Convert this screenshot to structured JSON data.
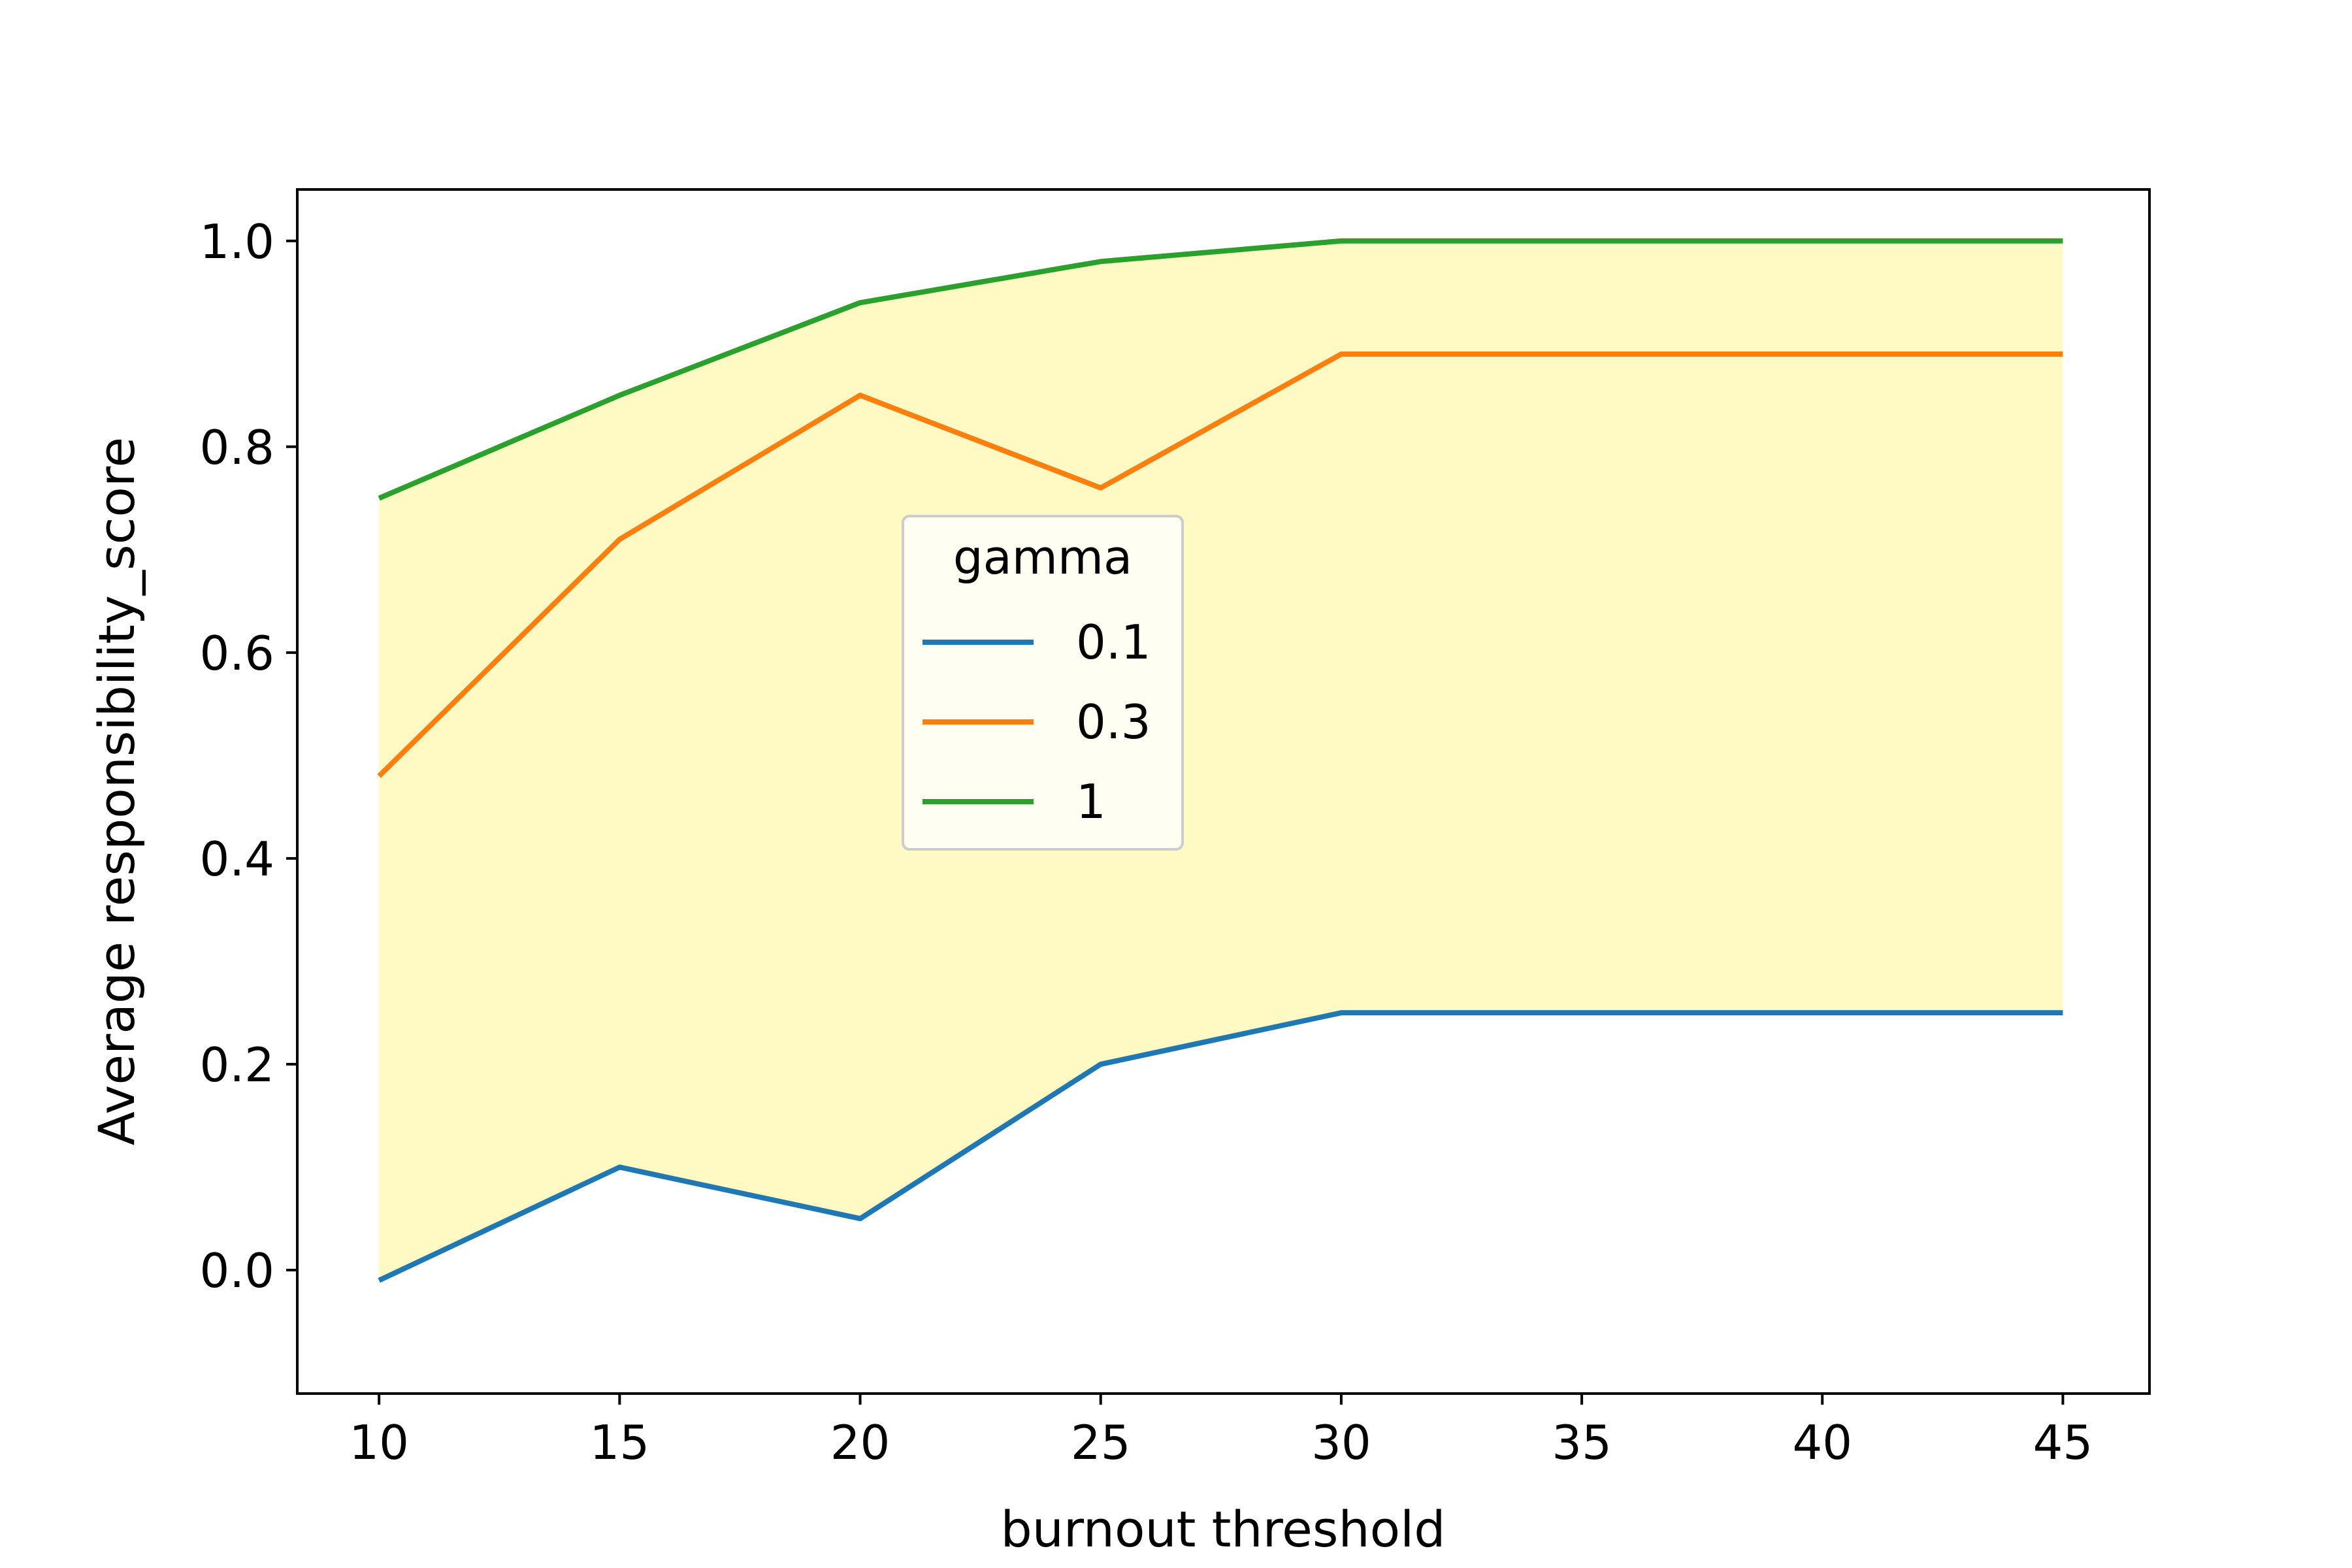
{
  "chart_data": {
    "type": "line",
    "title": "",
    "xlabel": "burnout threshold",
    "ylabel": "Average responsibility_score",
    "x": [
      10,
      15,
      20,
      25,
      30,
      35,
      40,
      45
    ],
    "xticks": [
      10,
      15,
      20,
      25,
      30,
      35,
      40,
      45
    ],
    "yticks": [
      0.0,
      0.2,
      0.4,
      0.6,
      0.8,
      1.0
    ],
    "ytick_labels": [
      "0.0",
      "0.2",
      "0.4",
      "0.6",
      "0.8",
      "1.0"
    ],
    "xlim": [
      8.3,
      46.8
    ],
    "ylim": [
      -0.12,
      1.05
    ],
    "grid": false,
    "legend": {
      "title": "gamma",
      "placement": "center"
    },
    "series": [
      {
        "name": "0.1",
        "color": "#1f77b4",
        "values": [
          -0.01,
          0.1,
          0.05,
          0.2,
          0.25,
          0.25,
          0.25,
          0.25
        ]
      },
      {
        "name": "0.3",
        "color": "#ff7f0e",
        "values": [
          0.48,
          0.71,
          0.85,
          0.76,
          0.89,
          0.89,
          0.89,
          0.89
        ]
      },
      {
        "name": "1",
        "color": "#2ca02c",
        "values": [
          0.75,
          0.85,
          0.94,
          0.98,
          1.0,
          1.0,
          1.0,
          1.0
        ]
      }
    ],
    "fill_between": {
      "lower_series": "0.1",
      "upper_series": "1",
      "color": "#fff9c4"
    }
  }
}
